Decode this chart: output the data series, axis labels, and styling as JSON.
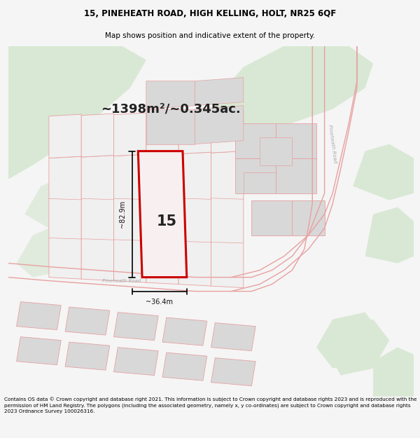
{
  "title_line1": "15, PINEHEATH ROAD, HIGH KELLING, HOLT, NR25 6QF",
  "title_line2": "Map shows position and indicative extent of the property.",
  "area_text": "~1398m²/~0.345ac.",
  "property_number": "15",
  "dim_vertical": "~82.9m",
  "dim_horizontal": "~36.4m",
  "road_label": "Pineheath Road",
  "road_label2": "Pineheath Road",
  "footer_text": "Contains OS data © Crown copyright and database right 2021. This information is subject to Crown copyright and database rights 2023 and is reproduced with the permission of HM Land Registry. The polygons (including the associated geometry, namely x, y co-ordinates) are subject to Crown copyright and database rights 2023 Ordnance Survey 100026316.",
  "bg_color": "#f5f5f5",
  "map_bg": "#ffffff",
  "light_green": "#d8e8d4",
  "pink_line": "#e8a0a0",
  "red_outline": "#cc0000",
  "gray_rect": "#d8d8d8"
}
